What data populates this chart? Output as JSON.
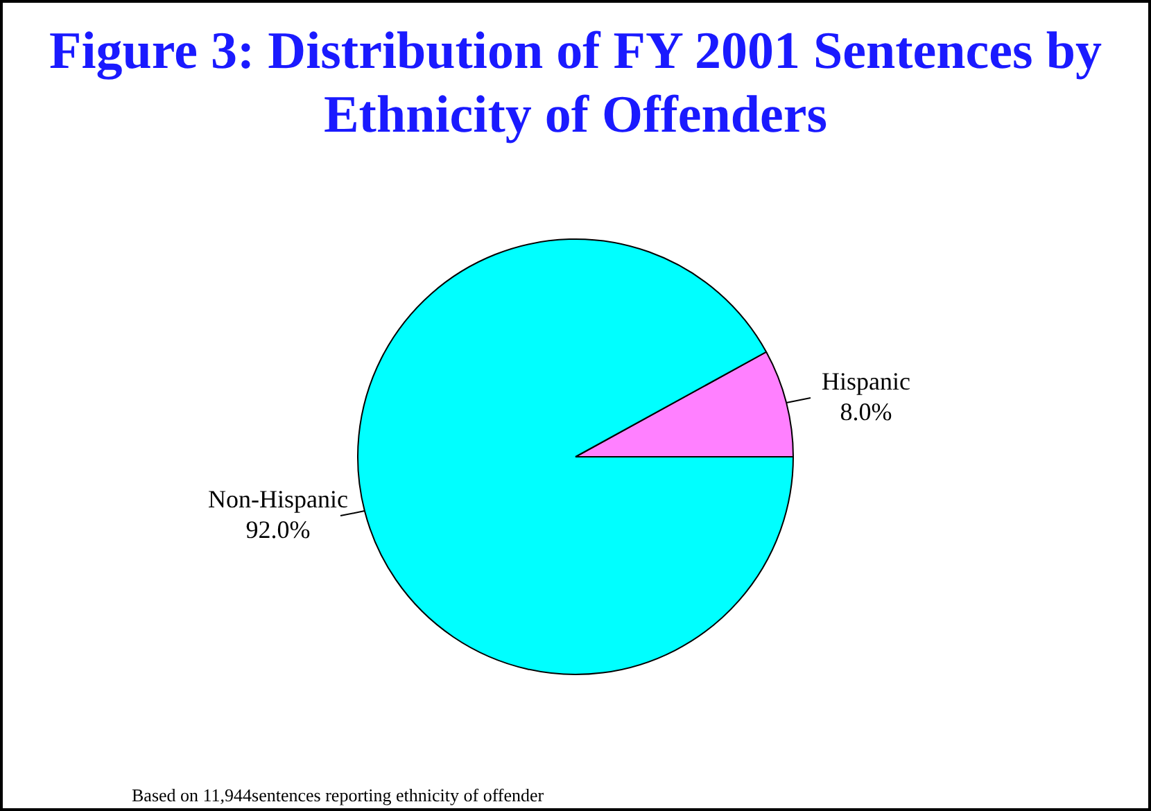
{
  "chart_data": {
    "type": "pie",
    "title": "Figure 3: Distribution of FY 2001 Sentences by Ethnicity of Offenders",
    "categories": [
      "Hispanic",
      "Non-Hispanic"
    ],
    "values": [
      8.0,
      92.0
    ],
    "colors": [
      "#ff80ff",
      "#00ffff"
    ],
    "value_labels": [
      "8.0%",
      "92.0%"
    ],
    "annotations": [
      "Based on 11,944sentences reporting ethnicity of offender"
    ]
  }
}
